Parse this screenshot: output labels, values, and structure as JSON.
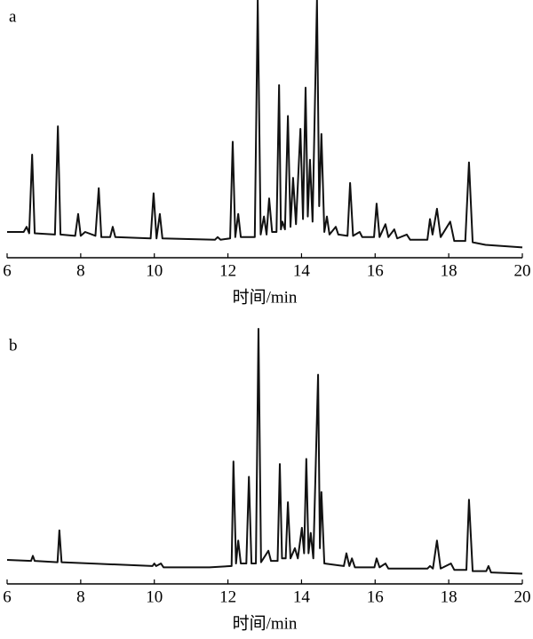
{
  "chart_data": [
    {
      "type": "line",
      "label": "a",
      "x_label": "时间/min",
      "color": "#111111",
      "xlim": [
        6,
        20
      ],
      "xticks": [
        6,
        8,
        10,
        12,
        14,
        16,
        18,
        20
      ],
      "ylim": [
        0,
        100
      ],
      "x": [
        6.0,
        6.45,
        6.53,
        6.6,
        6.68,
        6.75,
        7.3,
        7.38,
        7.45,
        7.85,
        7.93,
        8.0,
        8.12,
        8.4,
        8.49,
        8.56,
        8.8,
        8.87,
        8.94,
        9.9,
        9.98,
        10.06,
        10.15,
        10.22,
        11.65,
        11.72,
        11.8,
        12.06,
        12.13,
        12.2,
        12.28,
        12.35,
        12.73,
        12.81,
        12.89,
        12.98,
        13.05,
        13.12,
        13.2,
        13.32,
        13.39,
        13.44,
        13.48,
        13.55,
        13.63,
        13.7,
        13.77,
        13.85,
        13.97,
        14.04,
        14.11,
        14.17,
        14.23,
        14.3,
        14.42,
        14.48,
        14.54,
        14.62,
        14.69,
        14.76,
        14.93,
        15.0,
        15.25,
        15.32,
        15.4,
        15.58,
        15.65,
        15.97,
        16.04,
        16.12,
        16.28,
        16.36,
        16.52,
        16.6,
        16.86,
        16.95,
        17.42,
        17.49,
        17.56,
        17.68,
        17.78,
        18.04,
        18.15,
        18.45,
        18.55,
        18.65,
        19.0,
        20.0
      ],
      "values": [
        10,
        10,
        12,
        9.5,
        40,
        9.5,
        9,
        51,
        9,
        8.5,
        17,
        8.5,
        10,
        8.5,
        27,
        8,
        8,
        12,
        8,
        7.5,
        25,
        7.5,
        17,
        7.5,
        7,
        8,
        7,
        7.5,
        45,
        8,
        17,
        8,
        8,
        100,
        9,
        16,
        9,
        23,
        10,
        10,
        67,
        11,
        14,
        11,
        55,
        12,
        31,
        13,
        50,
        15,
        66,
        16,
        38,
        14,
        100,
        20,
        48,
        10,
        16,
        9,
        12,
        9,
        8.5,
        29,
        8.5,
        10,
        8,
        8,
        21,
        8,
        13,
        8,
        11,
        7.5,
        9,
        7,
        7,
        15,
        9,
        19,
        8,
        14,
        6.5,
        6.5,
        37,
        6,
        5,
        4
      ]
    },
    {
      "type": "line",
      "label": "b",
      "x_label": "时间/min",
      "color": "#111111",
      "xlim": [
        6,
        20
      ],
      "xticks": [
        6,
        8,
        10,
        12,
        14,
        16,
        18,
        20
      ],
      "ylim": [
        0,
        100
      ],
      "x": [
        6.0,
        6.65,
        6.7,
        6.75,
        7.37,
        7.42,
        7.48,
        9.95,
        10.0,
        10.05,
        10.18,
        10.25,
        11.5,
        12.1,
        12.15,
        12.22,
        12.28,
        12.35,
        12.5,
        12.57,
        12.64,
        12.76,
        12.83,
        12.9,
        13.1,
        13.17,
        13.35,
        13.41,
        13.47,
        13.57,
        13.63,
        13.7,
        13.82,
        13.9,
        14.01,
        14.07,
        14.13,
        14.19,
        14.25,
        14.32,
        14.45,
        14.5,
        14.54,
        14.62,
        15.15,
        15.22,
        15.3,
        15.37,
        15.45,
        15.98,
        16.04,
        16.12,
        16.28,
        16.36,
        17.42,
        17.49,
        17.57,
        17.68,
        17.78,
        18.06,
        18.15,
        18.48,
        18.55,
        18.65,
        19.02,
        19.08,
        19.15,
        20.0
      ],
      "values": [
        9.4,
        9,
        11,
        9,
        8.5,
        21,
        8.5,
        7,
        8,
        7,
        8,
        6.5,
        6.5,
        7,
        48,
        8,
        17,
        8,
        8,
        42,
        8,
        8,
        100,
        8.5,
        13,
        9,
        9,
        47,
        10,
        10,
        32,
        10,
        14,
        10,
        22,
        12,
        49,
        12,
        20,
        10,
        82,
        14,
        36,
        8,
        7,
        12,
        7,
        10,
        6.5,
        6.5,
        10,
        6.5,
        8,
        6,
        6,
        7,
        6,
        17,
        6,
        8,
        5.5,
        5.5,
        33,
        5,
        5,
        7,
        4.5,
        4
      ]
    }
  ]
}
